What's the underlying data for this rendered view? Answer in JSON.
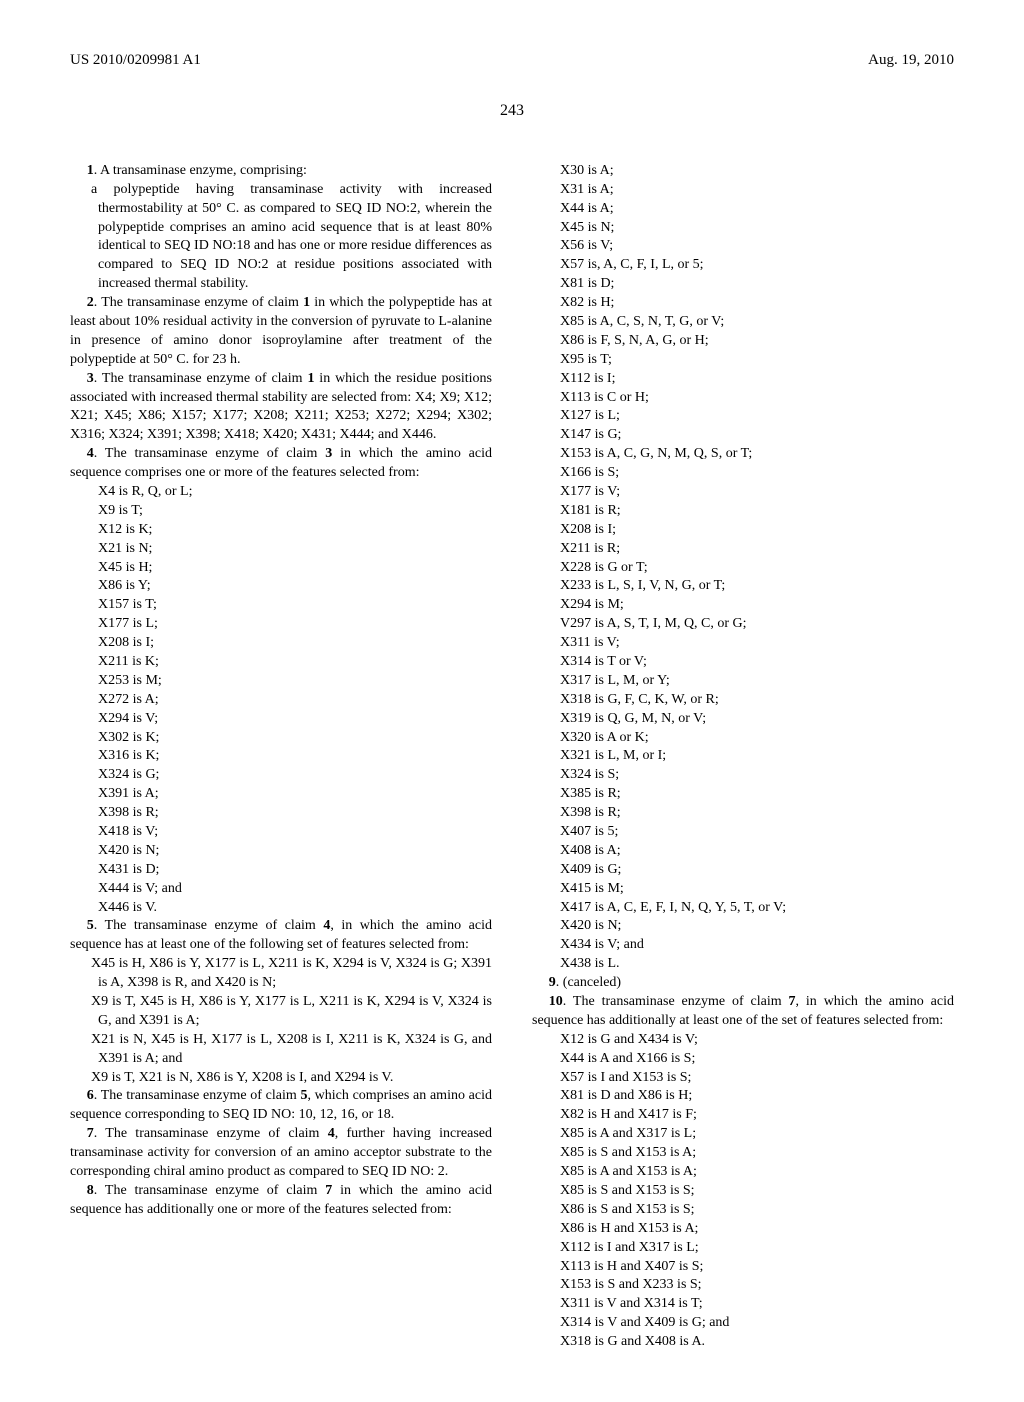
{
  "header": {
    "pub_number": "US 2010/0209981 A1",
    "pub_date": "Aug. 19, 2010"
  },
  "page_number": "243",
  "left_column": {
    "claim1": {
      "num": "1",
      "lead": ". A transaminase enzyme, comprising:",
      "body": "a polypeptide having transaminase activity with increased thermostability at 50° C. as compared to SEQ ID NO:2, wherein the polypeptide comprises an amino acid sequence that is at least 80% identical to SEQ ID NO:18 and has one or more residue differences as compared to SEQ ID NO:2 at residue positions associated with increased thermal stability."
    },
    "claim2": {
      "num": "2",
      "text": ". The transaminase enzyme of claim ",
      "ref": "1",
      "text2": " in which the polypeptide has at least about 10% residual activity in the conversion of pyruvate to L-alanine in presence of amino donor isoproylamine after treatment of the polypeptide at 50° C. for 23 h."
    },
    "claim3": {
      "num": "3",
      "text": ". The transaminase enzyme of claim ",
      "ref": "1",
      "text2": " in which the residue positions associated with increased thermal stability are selected from: X4; X9; X12; X21; X45; X86; X157; X177; X208; X211; X253; X272; X294; X302; X316; X324; X391; X398; X418; X420; X431; X444; and X446."
    },
    "claim4": {
      "num": "4",
      "text": ". The transaminase enzyme of claim ",
      "ref": "3",
      "text2": " in which the amino acid sequence comprises one or more of the features selected from:",
      "items": [
        "X4 is R, Q, or L;",
        "X9 is T;",
        "X12 is K;",
        "X21 is N;",
        "X45 is H;",
        "X86 is Y;",
        "X157 is T;",
        "X177 is L;",
        "X208 is I;",
        "X211 is K;",
        "X253 is M;",
        "X272 is A;",
        "X294 is V;",
        "X302 is K;",
        "X316 is K;",
        "X324 is G;",
        "X391 is A;",
        "X398 is R;",
        "X418 is V;",
        "X420 is N;",
        "X431 is D;",
        "X444 is V; and",
        "X446 is V."
      ]
    },
    "claim5": {
      "num": "5",
      "text": ". The transaminase enzyme of claim ",
      "ref": "4",
      "text2": ", in which the amino acid sequence has at least one of the following set of features selected from:",
      "items": [
        "X45 is H, X86 is Y, X177 is L, X211 is K, X294 is V, X324 is G; X391 is A, X398 is R, and X420 is N;",
        "X9 is T, X45 is H, X86 is Y, X177 is L, X211 is K, X294 is V, X324 is G, and X391 is A;",
        "X21 is N, X45 is H, X177 is L, X208 is I, X211 is K, X324 is G, and X391 is A; and",
        "X9 is T, X21 is N, X86 is Y, X208 is I, and X294 is V."
      ]
    },
    "claim6": {
      "num": "6",
      "text": ". The transaminase enzyme of claim ",
      "ref": "5",
      "text2": ", which comprises an amino acid sequence corresponding to SEQ ID NO: 10, 12, 16, or 18."
    },
    "claim7": {
      "num": "7",
      "text": ". The transaminase enzyme of claim ",
      "ref": "4",
      "text2": ", further having increased transaminase activity for conversion of an amino acceptor substrate to the corresponding chiral amino product as compared to SEQ ID NO: 2."
    },
    "claim8": {
      "num": "8",
      "text": ". The transaminase enzyme of claim ",
      "ref": "7",
      "text2": " in which the amino acid sequence has additionally one or more of the features selected from:"
    }
  },
  "right_column": {
    "claim8_items": [
      "X30 is A;",
      "X31 is A;",
      "X44 is A;",
      "X45 is N;",
      "X56 is V;",
      "X57 is, A, C, F, I, L, or 5;",
      "X81 is D;",
      "X82 is H;",
      "X85 is A, C, S, N, T, G, or V;",
      "X86 is F, S, N, A, G, or H;",
      "X95 is T;",
      "X112 is I;",
      "X113 is C or H;",
      "X127 is L;",
      "X147 is G;",
      "X153 is A, C, G, N, M, Q, S, or T;",
      "X166 is S;",
      "X177 is V;",
      "X181 is R;",
      "X208 is I;",
      "X211 is R;",
      "X228 is G or T;",
      "X233 is L, S, I, V, N, G, or T;",
      "X294 is M;",
      "V297 is A, S, T, I, M, Q, C, or G;",
      "X311 is V;",
      "X314 is T or V;",
      "X317 is L, M, or Y;",
      "X318 is G, F, C, K, W, or R;",
      "X319 is Q, G, M, N, or V;",
      "X320 is A or K;",
      "X321 is L, M, or I;",
      "X324 is S;",
      "X385 is R;",
      "X398 is R;",
      "X407 is 5;",
      "X408 is A;",
      "X409 is G;",
      "X415 is M;",
      "X417 is A, C, E, F, I, N, Q, Y, 5, T, or V;",
      "X420 is N;",
      "X434 is V; and",
      "X438 is L."
    ],
    "claim9": {
      "num": "9",
      "text": ". (canceled)"
    },
    "claim10": {
      "num": "10",
      "text": ". The transaminase enzyme of claim ",
      "ref": "7",
      "text2": ", in which the amino acid sequence has additionally at least one of the set of features selected from:",
      "items": [
        "X12 is G and X434 is V;",
        "X44 is A and X166 is S;",
        "X57 is I and X153 is S;",
        "X81 is D and X86 is H;",
        "X82 is H and X417 is F;",
        "X85 is A and X317 is L;",
        "X85 is S and X153 is A;",
        "X85 is A and X153 is A;",
        "X85 is S and X153 is S;",
        "X86 is S and X153 is S;",
        "X86 is H and X153 is A;",
        "X112 is I and X317 is L;",
        "X113 is H and X407 is S;",
        "X153 is S and X233 is S;",
        "X311 is V and X314 is T;",
        "X314 is V and X409 is G; and",
        "X318 is G and X408 is A."
      ]
    }
  }
}
